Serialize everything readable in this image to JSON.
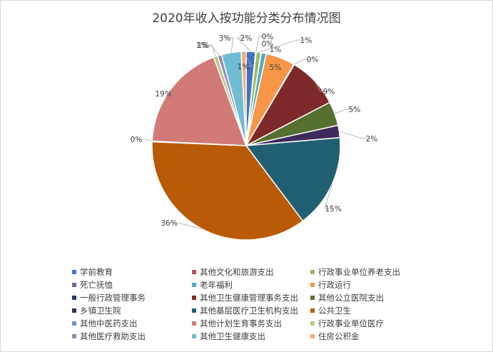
{
  "chart_data": {
    "type": "pie",
    "title": "2020年收入按功能分类分布情况图",
    "categories": [
      "学前教育",
      "其他文化和旅游支出",
      "行政事业单位养老支出",
      "死亡抚恤",
      "老年福利",
      "行政运行",
      "一般行政管理事务",
      "其他卫生健康管理事务支出",
      "其他公立医院支出",
      "乡镇卫生院",
      "其他基层医疗卫生机构支出",
      "公共卫生",
      "其他中医药支出",
      "其他计划生育事务支出",
      "行政事业单位医疗",
      "其他医疗救助支出",
      "其他卫生健康支出",
      "住房公积金"
    ],
    "values": [
      2,
      0,
      1,
      0,
      1,
      5,
      0,
      9,
      5,
      2,
      15,
      36,
      0,
      19,
      1,
      1,
      3,
      1
    ],
    "data_labels": [
      "2%",
      "0%",
      "1%",
      "0%",
      "1%",
      "5%",
      "0%",
      "9%",
      "5%",
      "2%",
      "15%",
      "36%",
      "0%",
      "19%",
      "1%",
      "1%",
      "3%",
      "1%"
    ],
    "colors": [
      "#4472c4",
      "#c0504d",
      "#9bbb59",
      "#7e5ea6",
      "#4bacc6",
      "#f79646",
      "#203864",
      "#7f2a2a",
      "#56702f",
      "#3e2a5c",
      "#215f73",
      "#b95a06",
      "#6f91d1",
      "#d17a77",
      "#b2cd85",
      "#9e86c0",
      "#6fbdd3",
      "#f9ac71"
    ],
    "legend_position": "bottom"
  }
}
